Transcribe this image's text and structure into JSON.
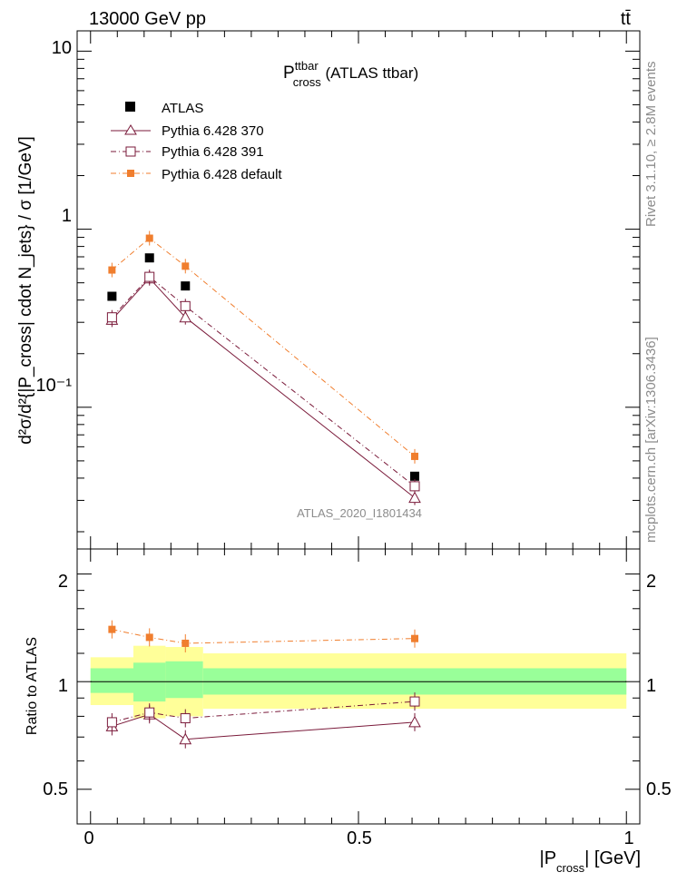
{
  "header": {
    "left": "13000 GeV pp",
    "right": "tt̄"
  },
  "side": {
    "top": "Rivet 3.1.10, ≥ 2.8M events",
    "bottom": "mcplots.cern.ch [arXiv:1306.3436]"
  },
  "chart_data": [
    {
      "type": "line",
      "title_main": "P",
      "title_sup": "ttbar",
      "title_sub": "cross",
      "title_rest": " (ATLAS ttbar)",
      "watermark": "ATLAS_2020_I1801434",
      "ylabel": "d²σ/d²{|P_cross| cdot N_jets} / σ [1/GeV]",
      "yscale": "log",
      "ylim": [
        0.016,
        13
      ],
      "xlim": [
        -0.025,
        1.025
      ],
      "ytick_labels": [
        "10",
        "1",
        "10⁻¹"
      ],
      "legend_position": "top-left",
      "x": [
        0.04,
        0.11,
        0.177,
        0.605
      ],
      "series": [
        {
          "name": "ATLAS",
          "color": "#000000",
          "marker": "filled-square",
          "values": [
            0.42,
            0.69,
            0.48,
            0.041
          ]
        },
        {
          "name": "Pythia 6.428 370",
          "color": "#7a1a3a",
          "marker": "open-triangle",
          "line": "solid",
          "values": [
            0.31,
            0.53,
            0.32,
            0.031
          ]
        },
        {
          "name": "Pythia 6.428 391",
          "color": "#7a1a3a",
          "marker": "open-square",
          "line": "dashdot",
          "values": [
            0.32,
            0.54,
            0.37,
            0.036
          ]
        },
        {
          "name": "Pythia 6.428 default",
          "color": "#f07e2e",
          "marker": "filled-square",
          "line": "dashdot",
          "values": [
            0.59,
            0.89,
            0.62,
            0.053
          ]
        }
      ]
    },
    {
      "type": "line",
      "ylabel": "Ratio to ATLAS",
      "xlabel_main": "|P",
      "xlabel_sub": "cross",
      "xlabel_rest": "| [GeV]",
      "ylim": [
        0.4,
        2.35
      ],
      "xlim": [
        -0.025,
        1.025
      ],
      "ytick_labels": [
        "2",
        "1",
        "0.5"
      ],
      "xtick_labels": [
        "0",
        "0.5",
        "1"
      ],
      "bands": [
        {
          "x0": 0.0,
          "x1": 0.08,
          "yellow": [
            0.86,
            1.17
          ],
          "green": [
            0.93,
            1.09
          ]
        },
        {
          "x0": 0.08,
          "x1": 0.14,
          "yellow": [
            0.79,
            1.26
          ],
          "green": [
            0.88,
            1.13
          ]
        },
        {
          "x0": 0.14,
          "x1": 0.21,
          "yellow": [
            0.8,
            1.25
          ],
          "green": [
            0.9,
            1.14
          ]
        },
        {
          "x0": 0.21,
          "x1": 1.0,
          "yellow": [
            0.84,
            1.2
          ],
          "green": [
            0.92,
            1.09
          ]
        }
      ],
      "x": [
        0.04,
        0.11,
        0.177,
        0.605
      ],
      "series": [
        {
          "name": "Pythia 6.428 370",
          "color": "#7a1a3a",
          "marker": "open-triangle",
          "line": "solid",
          "values": [
            0.75,
            0.81,
            0.69,
            0.77
          ]
        },
        {
          "name": "Pythia 6.428 391",
          "color": "#7a1a3a",
          "marker": "open-square",
          "line": "dashdot",
          "values": [
            0.77,
            0.82,
            0.79,
            0.88
          ]
        },
        {
          "name": "Pythia 6.428 default",
          "color": "#f07e2e",
          "marker": "filled-square",
          "line": "dashdot",
          "values": [
            1.4,
            1.33,
            1.28,
            1.32
          ]
        }
      ]
    }
  ]
}
